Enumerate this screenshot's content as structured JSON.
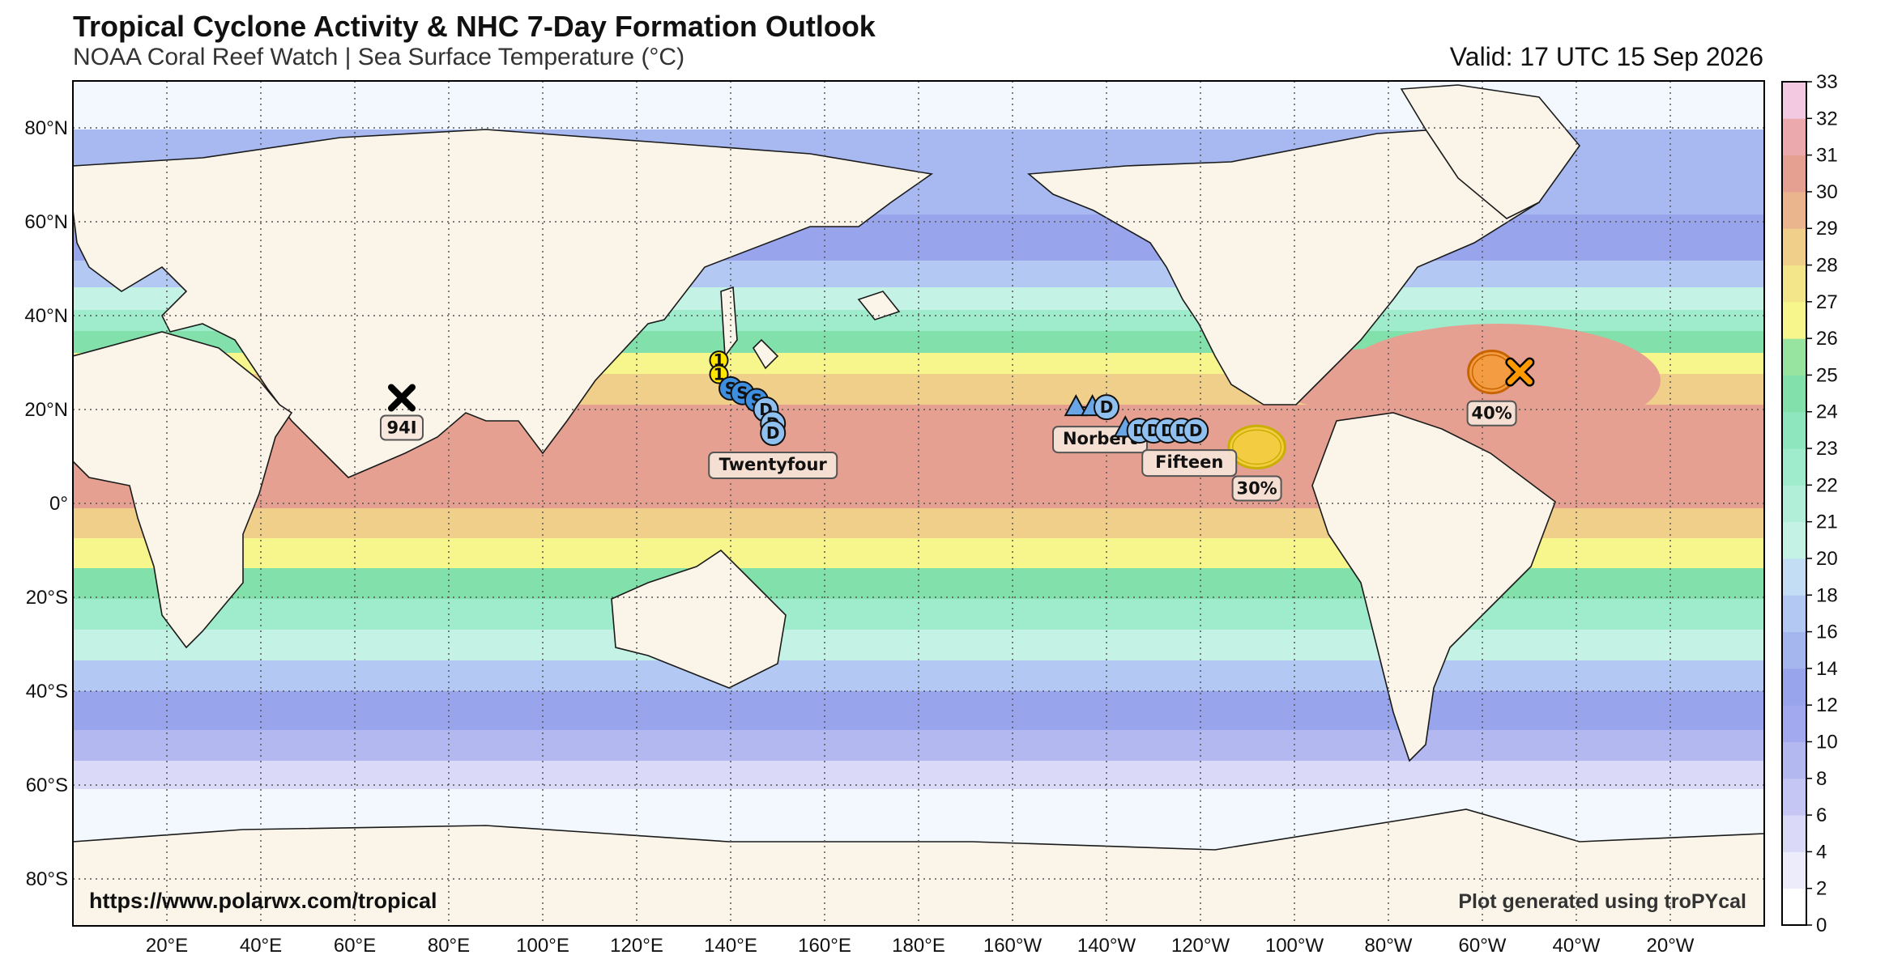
{
  "header": {
    "title": "Tropical Cyclone Activity & NHC 7-Day Formation Outlook",
    "subtitle": "NOAA Coral Reef Watch | Sea Surface Temperature (°C)",
    "valid": "Valid: 17 UTC 15 Sep 2026"
  },
  "footer": {
    "url": "https://www.polarwx.com/tropical",
    "credit": "Plot generated using troPYcal"
  },
  "chart_data": {
    "type": "map",
    "projection": "plate-carree",
    "lon_range": [
      0,
      360
    ],
    "lat_range": [
      -90,
      90
    ],
    "grid": "dotted",
    "lon_ticks": [
      {
        "lon": 20,
        "label": "20°E"
      },
      {
        "lon": 40,
        "label": "40°E"
      },
      {
        "lon": 60,
        "label": "60°E"
      },
      {
        "lon": 80,
        "label": "80°E"
      },
      {
        "lon": 100,
        "label": "100°E"
      },
      {
        "lon": 120,
        "label": "120°E"
      },
      {
        "lon": 140,
        "label": "140°E"
      },
      {
        "lon": 160,
        "label": "160°E"
      },
      {
        "lon": 180,
        "label": "180°E"
      },
      {
        "lon": 200,
        "label": "160°W"
      },
      {
        "lon": 220,
        "label": "140°W"
      },
      {
        "lon": 240,
        "label": "120°W"
      },
      {
        "lon": 260,
        "label": "100°W"
      },
      {
        "lon": 280,
        "label": "80°W"
      },
      {
        "lon": 300,
        "label": "60°W"
      },
      {
        "lon": 320,
        "label": "40°W"
      },
      {
        "lon": 340,
        "label": "20°W"
      }
    ],
    "lat_ticks": [
      {
        "lat": 80,
        "label": "80°N"
      },
      {
        "lat": 60,
        "label": "60°N"
      },
      {
        "lat": 40,
        "label": "40°N"
      },
      {
        "lat": 20,
        "label": "20°N"
      },
      {
        "lat": 0,
        "label": "0°"
      },
      {
        "lat": -20,
        "label": "20°S"
      },
      {
        "lat": -40,
        "label": "40°S"
      },
      {
        "lat": -60,
        "label": "60°S"
      },
      {
        "lat": -80,
        "label": "80°S"
      }
    ],
    "colorbar": {
      "label": "Sea Surface Temperature (°C)",
      "ticks": [
        "0",
        "2",
        "4",
        "6",
        "8",
        "10",
        "12",
        "14",
        "16",
        "18",
        "20",
        "21",
        "22",
        "23",
        "24",
        "25",
        "26",
        "27",
        "28",
        "29",
        "30",
        "31",
        "32",
        "33"
      ],
      "colors": [
        "#ffffff",
        "#ececfb",
        "#dadaf8",
        "#c6c6f4",
        "#b4b8f1",
        "#a3a9ee",
        "#98a4ec",
        "#a5b6ef",
        "#b3c8f2",
        "#c3ddf4",
        "#c4f3e6",
        "#b1efd9",
        "#9feccd",
        "#8de6bd",
        "#82e0aa",
        "#96e49f",
        "#f6f68c",
        "#f3e68a",
        "#f0cf8b",
        "#eab58c",
        "#e5a091",
        "#eba8ad",
        "#f3c9e2"
      ]
    },
    "storms": [
      {
        "name": "Twentyfour",
        "track": [
          {
            "lon": 137.5,
            "lat": 30.5,
            "type": "1"
          },
          {
            "lon": 137.5,
            "lat": 27.5,
            "type": "1"
          },
          {
            "lon": 140.0,
            "lat": 24.5,
            "type": "S"
          },
          {
            "lon": 142.5,
            "lat": 23.5,
            "type": "S"
          },
          {
            "lon": 145.5,
            "lat": 22.0,
            "type": "S"
          },
          {
            "lon": 147.5,
            "lat": 20.0,
            "type": "D"
          },
          {
            "lon": 149.0,
            "lat": 17.0,
            "type": "D"
          },
          {
            "lon": 149.0,
            "lat": 15.0,
            "type": "D"
          }
        ]
      },
      {
        "name": "Norbert",
        "track": [
          {
            "lon": 213.5,
            "lat": 20.5,
            "type": "triangle"
          },
          {
            "lon": 217.0,
            "lat": 20.5,
            "type": "triangle"
          },
          {
            "lon": 220.0,
            "lat": 20.5,
            "type": "D"
          }
        ]
      },
      {
        "name": "Fifteen",
        "track": [
          {
            "lon": 224.0,
            "lat": 16.0,
            "type": "triangle"
          },
          {
            "lon": 227.0,
            "lat": 15.5,
            "type": "D"
          },
          {
            "lon": 230.0,
            "lat": 15.5,
            "type": "D"
          },
          {
            "lon": 233.0,
            "lat": 15.5,
            "type": "D"
          },
          {
            "lon": 236.0,
            "lat": 15.5,
            "type": "D"
          },
          {
            "lon": 239.0,
            "lat": 15.5,
            "type": "D"
          }
        ]
      }
    ],
    "invests": [
      {
        "name": "94I",
        "lon": 70.0,
        "lat": 22.5,
        "color": "#000000"
      }
    ],
    "outlook_areas": [
      {
        "label": "30%",
        "lon": 252.0,
        "lat": 12.0,
        "rx_deg": 6.0,
        "ry_deg": 4.5,
        "color": "#fff000",
        "edge": "#c9b000"
      },
      {
        "label": "40%",
        "lon": 302.0,
        "lat": 28.0,
        "rx_deg": 5.0,
        "ry_deg": 4.5,
        "color": "#ff9900",
        "edge": "#c86400",
        "x_lon": 308.0,
        "x_lat": 28.0
      }
    ]
  }
}
